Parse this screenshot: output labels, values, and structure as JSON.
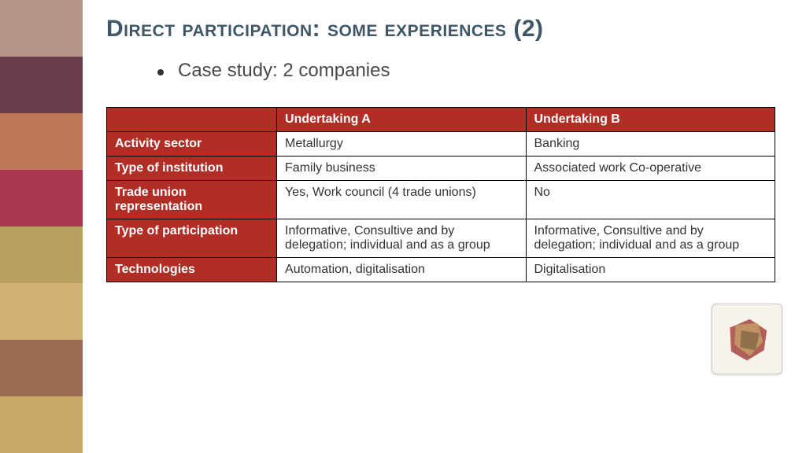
{
  "decor_colors": [
    "#b59585",
    "#6b3d4a",
    "#c07858",
    "#a6374e",
    "#b8a060",
    "#d1b074",
    "#9c6b52",
    "#c9a86a"
  ],
  "title": "Direct participation: some experiences (2)",
  "bullet": "Case study: 2 companies",
  "table": {
    "col_headers": [
      "Undertaking A",
      "Undertaking B"
    ],
    "rows": [
      {
        "label": "Activity sector",
        "a": "Metallurgy",
        "b": "Banking"
      },
      {
        "label": "Type of institution",
        "a": "Family business",
        "b": "Associated work Co-operative"
      },
      {
        "label": "Trade union representation",
        "a": "Yes, Work council (4 trade unions)",
        "b": "No"
      },
      {
        "label": "Type of participation",
        "a": "Informative, Consultive and by delegation; individual and as a group",
        "b": "Informative, Consultive and by delegation; individual and as a group"
      },
      {
        "label": "Technologies",
        "a": "Automation, digitalisation",
        "b": "Digitalisation"
      }
    ],
    "header_bg": "#b02e26",
    "header_fg": "#ffffff",
    "cell_bg": "#ffffff",
    "border_color": "#000000",
    "font_size": 16
  },
  "title_color": "#3f5666",
  "title_fontsize": 30,
  "bullet_color": "#494949",
  "bullet_fontsize": 24
}
